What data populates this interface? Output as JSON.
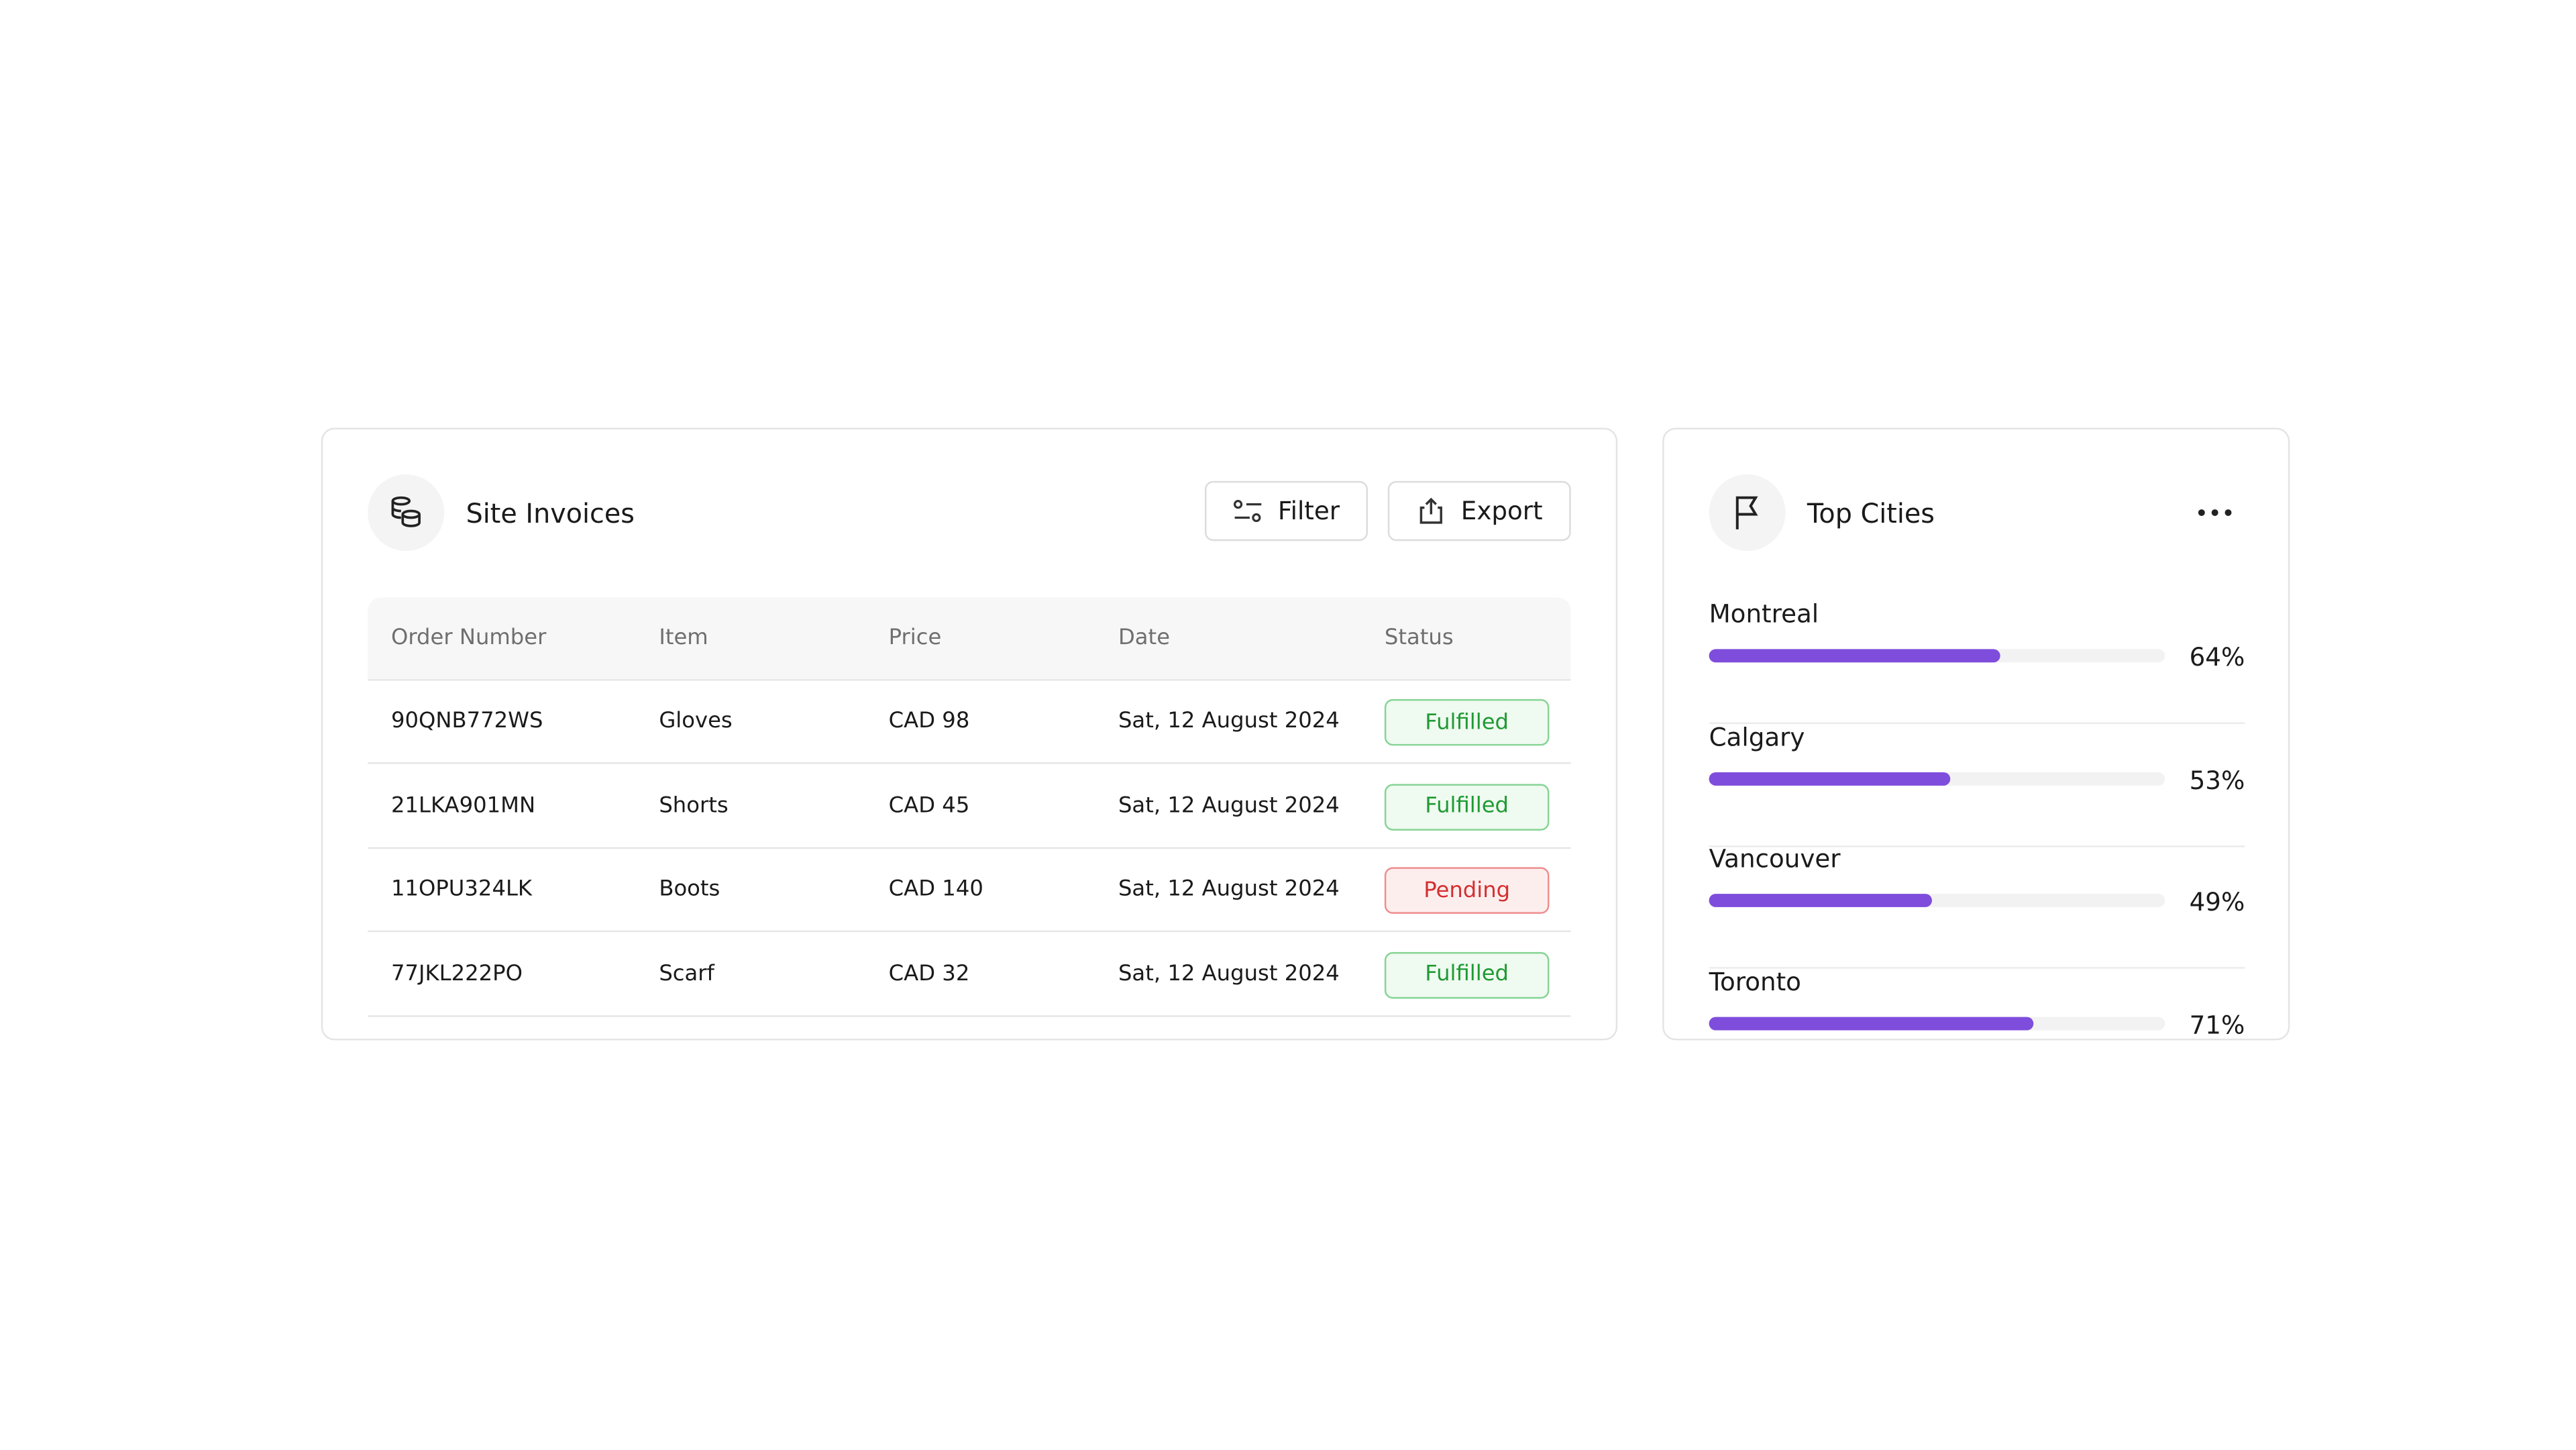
{
  "invoices": {
    "title": "Site Invoices",
    "filter": "Filter",
    "export": "Export",
    "columns": [
      "Order Number",
      "Item",
      "Price",
      "Date",
      "Status"
    ],
    "rows": [
      [
        "90QNB772WS",
        "Gloves",
        "CAD 98",
        "Sat, 12 August 2024",
        "Fulfilled"
      ],
      [
        "21LKA901MN",
        "Shorts",
        "CAD 45",
        "Sat, 12 August 2024",
        "Fulfilled"
      ],
      [
        "11OPU324LK",
        "Boots",
        "CAD 140",
        "Sat, 12 August 2024",
        "Pending"
      ],
      [
        "77JKL222PO",
        "Scarf",
        "CAD 32",
        "Sat, 12 August 2024",
        "Fulfilled"
      ]
    ]
  },
  "cities": {
    "title": "Top Cities",
    "items": [
      {
        "name": "Montreal",
        "value": 64,
        "label": "64%"
      },
      {
        "name": "Calgary",
        "value": 53,
        "label": "53%"
      },
      {
        "name": "Vancouver",
        "value": 49,
        "label": "49%"
      },
      {
        "name": "Toronto",
        "value": 71,
        "label": "71%"
      }
    ]
  }
}
